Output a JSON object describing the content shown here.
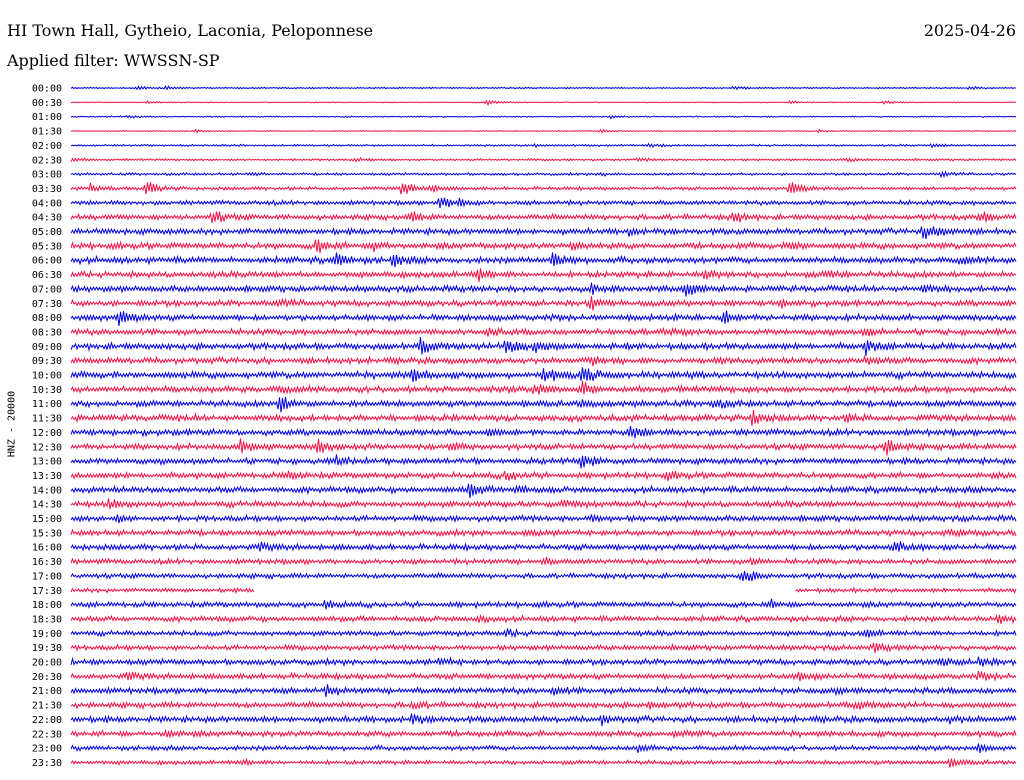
{
  "header": {
    "station": "HI Town Hall, Gytheio, Laconia, Peloponnese",
    "date": "2025-04-26",
    "filter": "Applied filter: WWSSN-SP"
  },
  "chart_data": {
    "type": "line",
    "title": "HI Town Hall, Gytheio, Laconia, Peloponnese",
    "ylabel": "HNZ - 20000",
    "row_labels": [
      "00:00",
      "00:30",
      "01:00",
      "01:30",
      "02:00",
      "02:30",
      "03:00",
      "03:30",
      "04:00",
      "04:30",
      "05:00",
      "05:30",
      "06:00",
      "06:30",
      "07:00",
      "07:30",
      "08:00",
      "08:30",
      "09:00",
      "09:30",
      "10:00",
      "10:30",
      "11:00",
      "11:30",
      "12:00",
      "12:30",
      "13:00",
      "13:30",
      "14:00",
      "14:30",
      "15:00",
      "15:30",
      "16:00",
      "16:30",
      "17:00",
      "17:30",
      "18:00",
      "18:30",
      "19:00",
      "19:30",
      "20:00",
      "20:30",
      "21:00",
      "21:30",
      "22:00",
      "22:30",
      "23:00",
      "23:30"
    ],
    "colors": [
      "#0000dd",
      "#ee1144"
    ],
    "rows": [
      {
        "noise": 0.6,
        "events": [
          [
            0.07,
            1.5
          ],
          [
            0.1,
            1.6
          ],
          [
            0.7,
            1.6
          ],
          [
            0.95,
            1.3
          ]
        ]
      },
      {
        "noise": 0.4,
        "events": [
          [
            0.08,
            1.3
          ],
          [
            0.44,
            2.5
          ],
          [
            0.76,
            1.5
          ],
          [
            0.86,
            1.5
          ]
        ]
      },
      {
        "noise": 0.5,
        "events": [
          [
            0.06,
            1.2
          ],
          [
            0.57,
            1.3
          ]
        ]
      },
      {
        "noise": 0.4,
        "events": [
          [
            0.13,
            1.3
          ],
          [
            0.56,
            1.4
          ],
          [
            0.79,
            1.3
          ]
        ]
      },
      {
        "noise": 0.8,
        "events": [
          [
            0.49,
            1.4
          ],
          [
            0.61,
            1.3
          ],
          [
            0.91,
            1.4
          ]
        ]
      },
      {
        "noise": 0.9,
        "events": [
          [
            0.0,
            1.6
          ],
          [
            0.3,
            1.4
          ],
          [
            0.6,
            1.4
          ],
          [
            0.82,
            1.6
          ]
        ]
      },
      {
        "noise": 1.0,
        "events": [
          [
            0.19,
            1.5
          ],
          [
            0.56,
            1.5
          ],
          [
            0.92,
            2.5
          ]
        ]
      },
      {
        "noise": 1.4,
        "events": [
          [
            0.02,
            4.0
          ],
          [
            0.08,
            7.0
          ],
          [
            0.35,
            7.5
          ],
          [
            0.38,
            3.0
          ],
          [
            0.76,
            7.5
          ]
        ]
      },
      {
        "noise": 1.8,
        "events": [
          [
            0.39,
            6.5
          ],
          [
            0.41,
            3.5
          ]
        ]
      },
      {
        "noise": 2.2,
        "events": [
          [
            0.15,
            6.5
          ],
          [
            0.36,
            4.5
          ],
          [
            0.7,
            5.0
          ],
          [
            0.96,
            5.5
          ]
        ]
      },
      {
        "noise": 2.4,
        "events": [
          [
            0.59,
            2.5
          ],
          [
            0.9,
            7.0
          ],
          [
            0.92,
            4.0
          ]
        ]
      },
      {
        "noise": 2.5,
        "events": [
          [
            0.26,
            7.5
          ],
          [
            0.32,
            4.5
          ],
          [
            0.53,
            3.5
          ],
          [
            0.76,
            3.5
          ]
        ]
      },
      {
        "noise": 2.6,
        "events": [
          [
            0.28,
            6.5
          ],
          [
            0.34,
            6.0
          ],
          [
            0.51,
            7.5
          ],
          [
            0.94,
            3.5
          ]
        ]
      },
      {
        "noise": 2.5,
        "events": [
          [
            0.43,
            6.0
          ],
          [
            0.67,
            6.0
          ],
          [
            0.8,
            3.0
          ]
        ]
      },
      {
        "noise": 2.5,
        "events": [
          [
            0.55,
            3.5
          ],
          [
            0.65,
            7.0
          ],
          [
            0.9,
            3.0
          ]
        ]
      },
      {
        "noise": 2.4,
        "events": [
          [
            0.22,
            3.0
          ],
          [
            0.55,
            7.0
          ],
          [
            0.75,
            3.0
          ]
        ]
      },
      {
        "noise": 2.5,
        "events": [
          [
            0.05,
            8.0
          ],
          [
            0.69,
            6.0
          ]
        ]
      },
      {
        "noise": 2.4,
        "events": [
          [
            0.44,
            3.0
          ],
          [
            0.63,
            3.0
          ],
          [
            0.84,
            3.0
          ]
        ]
      },
      {
        "noise": 2.6,
        "events": [
          [
            0.37,
            7.5
          ],
          [
            0.46,
            9.0
          ],
          [
            0.49,
            5.0
          ],
          [
            0.84,
            7.5
          ]
        ]
      },
      {
        "noise": 2.5,
        "events": [
          [
            0.55,
            4.0
          ],
          [
            0.84,
            3.5
          ]
        ]
      },
      {
        "noise": 2.7,
        "events": [
          [
            0.36,
            7.0
          ],
          [
            0.5,
            7.0
          ],
          [
            0.54,
            8.0
          ]
        ]
      },
      {
        "noise": 2.6,
        "events": [
          [
            0.22,
            3.5
          ],
          [
            0.49,
            5.5
          ],
          [
            0.54,
            7.5
          ]
        ]
      },
      {
        "noise": 2.5,
        "events": [
          [
            0.22,
            9.0
          ],
          [
            0.54,
            3.0
          ],
          [
            0.68,
            4.0
          ]
        ]
      },
      {
        "noise": 2.6,
        "events": [
          [
            0.72,
            7.0
          ],
          [
            0.82,
            3.0
          ]
        ]
      },
      {
        "noise": 2.5,
        "events": [
          [
            0.44,
            3.5
          ],
          [
            0.59,
            7.5
          ]
        ]
      },
      {
        "noise": 2.4,
        "events": [
          [
            0.18,
            7.0
          ],
          [
            0.26,
            7.5
          ],
          [
            0.4,
            4.0
          ],
          [
            0.86,
            9.0
          ]
        ]
      },
      {
        "noise": 2.4,
        "events": [
          [
            0.28,
            4.0
          ],
          [
            0.54,
            7.5
          ]
        ]
      },
      {
        "noise": 2.4,
        "events": [
          [
            0.23,
            4.0
          ],
          [
            0.46,
            5.0
          ],
          [
            0.63,
            3.0
          ]
        ]
      },
      {
        "noise": 2.5,
        "events": [
          [
            0.42,
            7.0
          ],
          [
            0.47,
            4.0
          ]
        ]
      },
      {
        "noise": 2.5,
        "events": [
          [
            0.04,
            4.0
          ],
          [
            0.52,
            3.0
          ]
        ]
      },
      {
        "noise": 2.4,
        "events": [
          [
            0.05,
            3.0
          ],
          [
            0.55,
            2.5
          ]
        ]
      },
      {
        "noise": 2.3,
        "events": [
          [
            0.48,
            2.5
          ],
          [
            0.93,
            3.0
          ]
        ]
      },
      {
        "noise": 2.4,
        "events": [
          [
            0.2,
            3.0
          ],
          [
            0.87,
            7.0
          ]
        ]
      },
      {
        "noise": 2.1,
        "events": [
          [
            0.5,
            2.5
          ],
          [
            0.72,
            2.5
          ]
        ]
      },
      {
        "noise": 2.0,
        "events": [
          [
            0.71,
            8.0
          ]
        ]
      },
      {
        "noise": 1.7,
        "events": [],
        "gap": [
          0.195,
          0.765
        ]
      },
      {
        "noise": 2.2,
        "events": [
          [
            0.27,
            4.0
          ],
          [
            0.74,
            3.0
          ]
        ]
      },
      {
        "noise": 2.2,
        "events": [
          [
            0.43,
            4.0
          ],
          [
            0.98,
            4.0
          ]
        ]
      },
      {
        "noise": 2.1,
        "events": [
          [
            0.46,
            3.0
          ],
          [
            0.84,
            3.0
          ]
        ]
      },
      {
        "noise": 2.1,
        "events": [
          [
            0.85,
            4.0
          ]
        ]
      },
      {
        "noise": 2.3,
        "events": [
          [
            0.39,
            3.5
          ],
          [
            0.92,
            4.0
          ],
          [
            0.96,
            4.5
          ]
        ]
      },
      {
        "noise": 2.3,
        "events": [
          [
            0.06,
            3.0
          ],
          [
            0.77,
            4.0
          ],
          [
            0.96,
            3.0
          ]
        ]
      },
      {
        "noise": 2.4,
        "events": [
          [
            0.27,
            4.0
          ],
          [
            0.51,
            4.0
          ],
          [
            0.81,
            3.0
          ]
        ]
      },
      {
        "noise": 2.3,
        "events": [
          [
            0.36,
            3.0
          ],
          [
            0.61,
            3.0
          ],
          [
            0.83,
            4.0
          ]
        ]
      },
      {
        "noise": 2.5,
        "events": [
          [
            0.36,
            4.0
          ],
          [
            0.56,
            4.0
          ],
          [
            0.93,
            3.0
          ]
        ]
      },
      {
        "noise": 2.3,
        "events": [
          [
            0.1,
            3.0
          ],
          [
            0.64,
            3.0
          ]
        ]
      },
      {
        "noise": 1.9,
        "events": [
          [
            0.6,
            3.5
          ],
          [
            0.96,
            3.5
          ]
        ]
      },
      {
        "noise": 1.7,
        "events": [
          [
            0.18,
            3.0
          ],
          [
            0.93,
            3.5
          ]
        ]
      }
    ]
  }
}
